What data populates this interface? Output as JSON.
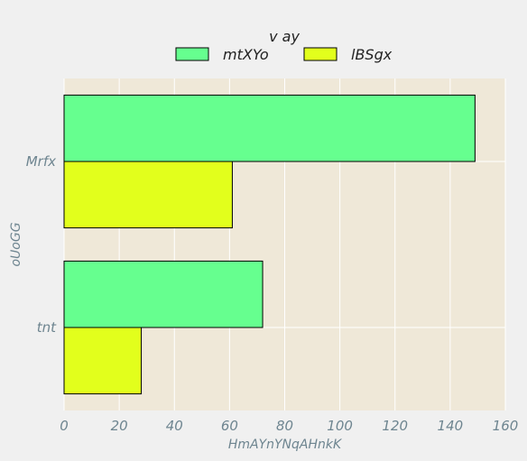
{
  "chart_data": {
    "type": "bar",
    "orientation": "horizontal",
    "categories": [
      "Mrfx",
      "tnt"
    ],
    "series": [
      {
        "name": "mtXYo",
        "values": [
          149,
          72
        ],
        "color": "#66ff8f"
      },
      {
        "name": "lBSgx",
        "values": [
          61,
          28
        ],
        "color": "#e2ff1c"
      }
    ],
    "xlabel": "HmAYnYNqAHnkK",
    "ylabel": "oUoGG",
    "xlim": [
      0,
      160
    ],
    "xticks": [
      0,
      20,
      40,
      60,
      80,
      100,
      120,
      140,
      160
    ],
    "grid": true,
    "legend": {
      "title": "v ay",
      "position": "top-center"
    },
    "colors": {
      "plot_background": "#efe8d8",
      "figure_background": "#f0f0f0",
      "grid": "#ffffff",
      "text": "#6e8590"
    }
  }
}
